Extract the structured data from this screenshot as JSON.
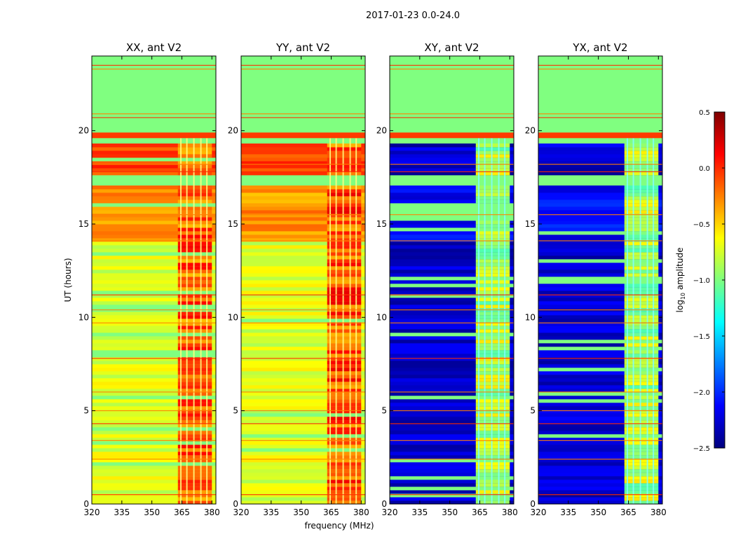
{
  "chart_data": {
    "type": "heatmap",
    "suptitle": "2017-01-23 0.0-24.0",
    "xlabel": "frequency (MHz)",
    "ylabel": "UT (hours)",
    "xlim": [
      320,
      382
    ],
    "ylim": [
      0,
      24
    ],
    "xticks": [
      320,
      335,
      350,
      365,
      380
    ],
    "yticks": [
      0,
      5,
      10,
      15,
      20
    ],
    "colormap": "jet",
    "colorbar": {
      "label": "log10 amplitude",
      "label_base": "log",
      "label_sub": "10",
      "label_rest": " amplitude",
      "range": [
        -2.5,
        0.5
      ],
      "ticks": [
        0.5,
        0.0,
        -0.5,
        -1.0,
        -1.5,
        -2.0,
        -2.5
      ],
      "tick_labels": [
        "0.5",
        "0.0",
        "−0.5",
        "−1.0",
        "−1.5",
        "−2.0",
        "−2.5"
      ],
      "colors": [
        "#00007f",
        "#0000ff",
        "#007fff",
        "#00ffff",
        "#7fff7f",
        "#ffff00",
        "#ff7f00",
        "#ff0000",
        "#7f0000"
      ]
    },
    "flagged_value": -1.0,
    "flagged_time_ranges": [
      [
        19.9,
        24.0
      ],
      [
        17.0,
        17.7
      ],
      [
        19.3,
        19.6
      ]
    ],
    "rfi_band_mhz": [
      363,
      380
    ],
    "rfi_columns_mhz": [
      364.5,
      367.5,
      371,
      374.5,
      377.5
    ],
    "panels": [
      {
        "title": "XX, ant V2",
        "base_level": -0.7,
        "base_level_14_17": -0.3,
        "band_level": -0.15
      },
      {
        "title": "YY, ant V2",
        "base_level": -0.7,
        "base_level_14_17": -0.3,
        "band_level": -0.1
      },
      {
        "title": "XY, ant V2",
        "base_level": -2.25,
        "base_level_14_17": -2.1,
        "band_level": -0.85
      },
      {
        "title": "YX, ant V2",
        "base_level": -2.25,
        "base_level_14_17": -2.1,
        "band_level": -0.85
      }
    ]
  }
}
